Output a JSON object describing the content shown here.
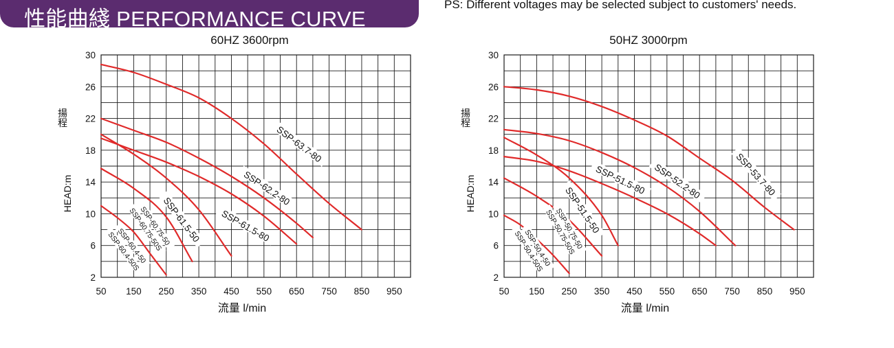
{
  "header": {
    "title": "性能曲綫 PERFORMANCE CURVE",
    "note": "PS: Different voltages may be selected subject to customers' needs."
  },
  "colors": {
    "banner": "#5b2c6f",
    "curve": "#e02a2a",
    "grid": "#1a1a1a"
  },
  "chart_data": [
    {
      "type": "line",
      "title": "60HZ  3600rpm",
      "xlabel": "流量  l/min",
      "ylabel_cn": "揚程",
      "ylabel": "HEAD:m",
      "xlim": [
        50,
        1000
      ],
      "ylim": [
        2,
        30
      ],
      "x_ticks": [
        50,
        150,
        250,
        350,
        450,
        550,
        650,
        750,
        850,
        950
      ],
      "y_ticks": [
        2,
        6,
        10,
        14,
        18,
        22,
        26,
        30
      ],
      "grid": true,
      "series": [
        {
          "name": "SSP-63.7-80",
          "x": [
            50,
            150,
            250,
            350,
            450,
            550,
            650,
            750,
            850
          ],
          "y": [
            28.8,
            27.8,
            26.3,
            24.6,
            22.0,
            18.8,
            15.0,
            11.3,
            8.0
          ]
        },
        {
          "name": "SSP-62.2-80",
          "x": [
            50,
            150,
            250,
            350,
            450,
            550,
            650,
            700
          ],
          "y": [
            22.0,
            20.5,
            19.0,
            17.0,
            14.7,
            12.0,
            8.8,
            7.0
          ]
        },
        {
          "name": "SSP-61.5-80",
          "x": [
            50,
            150,
            250,
            350,
            450,
            550,
            650
          ],
          "y": [
            19.5,
            18.0,
            16.5,
            14.7,
            12.5,
            9.7,
            6.2
          ]
        },
        {
          "name": "SSP-61.5-50",
          "x": [
            50,
            150,
            250,
            350,
            450
          ],
          "y": [
            20.0,
            17.5,
            14.5,
            10.5,
            4.7
          ]
        },
        {
          "name": "SSP-60.75-50",
          "x": [
            50,
            150,
            250,
            330
          ],
          "y": [
            15.7,
            13.2,
            9.6,
            4.0
          ]
        },
        {
          "name": "SSP-60.75-50S",
          "x": [
            50,
            150,
            250,
            330
          ],
          "y": [
            15.7,
            13.2,
            9.6,
            4.0
          ]
        },
        {
          "name": "SSP-60.4-50",
          "x": [
            50,
            100,
            150,
            200,
            250
          ],
          "y": [
            11.0,
            9.5,
            7.7,
            5.0,
            2.3
          ]
        },
        {
          "name": "SSP-60.4-50S",
          "x": [
            50,
            100,
            150,
            200,
            250
          ],
          "y": [
            11.0,
            9.5,
            7.7,
            5.0,
            2.3
          ]
        }
      ]
    },
    {
      "type": "line",
      "title": "50HZ  3000rpm",
      "xlabel": "流量  l/min",
      "ylabel_cn": "揚程",
      "ylabel": "HEAD:m",
      "xlim": [
        50,
        1000
      ],
      "ylim": [
        2,
        30
      ],
      "x_ticks": [
        50,
        150,
        250,
        350,
        450,
        550,
        650,
        750,
        850,
        950
      ],
      "y_ticks": [
        2,
        6,
        10,
        14,
        18,
        22,
        26,
        30
      ],
      "grid": true,
      "series": [
        {
          "name": "SSP-53.7-80",
          "x": [
            50,
            150,
            250,
            350,
            450,
            550,
            650,
            750,
            850,
            940
          ],
          "y": [
            26.0,
            25.6,
            24.8,
            23.5,
            21.8,
            19.8,
            17.0,
            14.2,
            10.8,
            8.0
          ]
        },
        {
          "name": "SSP-52.2-80",
          "x": [
            50,
            150,
            250,
            350,
            450,
            550,
            650,
            760
          ],
          "y": [
            20.6,
            20.1,
            19.2,
            17.7,
            15.8,
            13.4,
            10.3,
            6.0
          ]
        },
        {
          "name": "SSP-51.5-80",
          "x": [
            50,
            150,
            250,
            350,
            450,
            550,
            650,
            700
          ],
          "y": [
            17.2,
            16.6,
            15.4,
            13.8,
            12.0,
            10.0,
            7.5,
            6.0
          ]
        },
        {
          "name": "SSP-51.5-50",
          "x": [
            50,
            150,
            250,
            350,
            400
          ],
          "y": [
            19.6,
            17.4,
            14.5,
            9.8,
            6.0
          ]
        },
        {
          "name": "SSP-50.75-50",
          "x": [
            50,
            150,
            250,
            350
          ],
          "y": [
            14.5,
            12.2,
            9.2,
            4.7
          ]
        },
        {
          "name": "SSP-50.75-50S",
          "x": [
            50,
            150,
            250,
            350
          ],
          "y": [
            14.5,
            12.2,
            9.2,
            4.7
          ]
        },
        {
          "name": "SSP-50.4-50",
          "x": [
            50,
            100,
            150,
            200,
            250
          ],
          "y": [
            9.8,
            8.6,
            6.8,
            4.8,
            2.5
          ]
        },
        {
          "name": "SSP-50.4-50S",
          "x": [
            50,
            100,
            150,
            200,
            250
          ],
          "y": [
            9.8,
            8.6,
            6.8,
            4.8,
            2.5
          ]
        }
      ]
    }
  ]
}
